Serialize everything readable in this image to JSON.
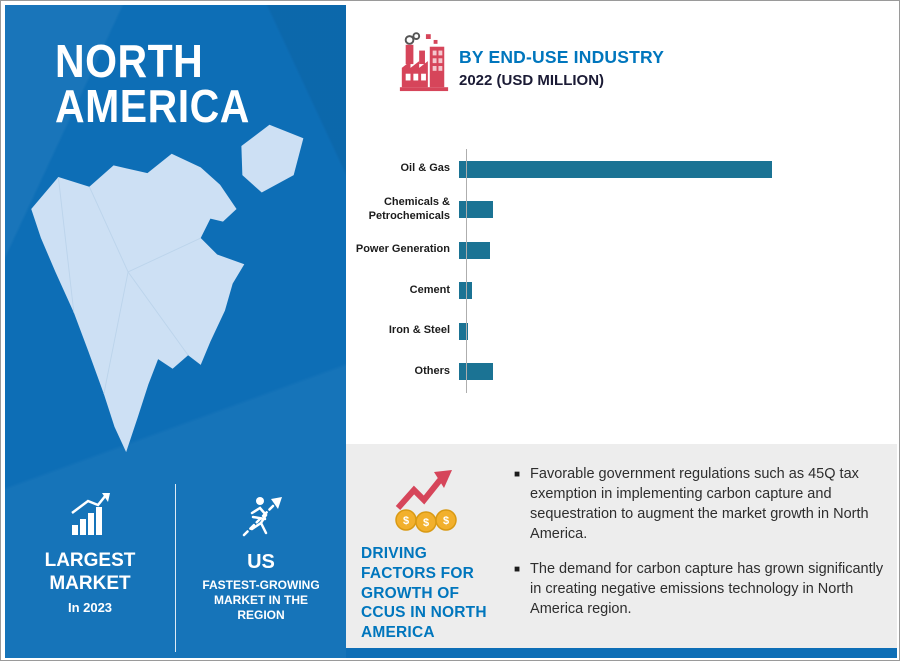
{
  "left_panel": {
    "title_line1": "NORTH",
    "title_line2": "AMERICA",
    "stats": [
      {
        "icon": "growth-bars-icon",
        "label": "LARGEST MARKET",
        "sublabel": "In 2023"
      },
      {
        "icon": "runner-icon",
        "label": "US",
        "sublabel": "FASTEST-GROWING MARKET IN THE REGION"
      }
    ]
  },
  "header": {
    "icon": "factory-icon",
    "title": "BY END-USE INDUSTRY",
    "subtitle": "2022 (USD MILLION)"
  },
  "chart_data": {
    "type": "bar",
    "orientation": "horizontal",
    "title": "BY END-USE INDUSTRY",
    "subtitle": "2022 (USD MILLION)",
    "categories": [
      "Oil & Gas",
      "Chemicals & Petrochemicals",
      "Power Generation",
      "Cement",
      "Iron & Steel",
      "Others"
    ],
    "values": [
      1000,
      110,
      100,
      40,
      28,
      110
    ],
    "xlabel": "",
    "ylabel": "",
    "xlim": [
      0,
      1050
    ],
    "grid": false,
    "legend": false,
    "bar_color": "#1b7394"
  },
  "driving_factors": {
    "icon": "coins-growth-arrow-icon",
    "heading": "DRIVING FACTORS FOR GROWTH OF CCUS IN NORTH AMERICA",
    "bullets": [
      "Favorable government regulations such as 45Q tax exemption in implementing carbon capture and sequestration to augment the market growth in North America.",
      "The demand for carbon capture has grown significantly in creating negative emissions technology in North America region."
    ]
  },
  "colors": {
    "panel_blue": "#0d6eb6",
    "map_fill": "#cde0f4",
    "bar_blue": "#1b7394",
    "heading_blue": "#0076bd",
    "dark_navy": "#1b1b35",
    "icon_red": "#d6455a",
    "coin_yellow": "#f2b02c",
    "panel_gray": "#ededed",
    "text_dark": "#2e2e2e"
  }
}
